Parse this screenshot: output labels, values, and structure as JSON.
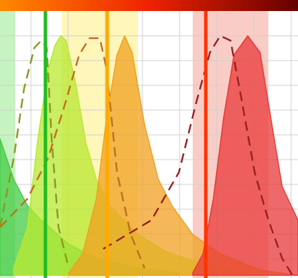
{
  "chart_data": {
    "type": "area",
    "xlim": [
      0,
      433
    ],
    "ylim": [
      0,
      100
    ],
    "grid": true,
    "bands": [
      {
        "x": [
          0,
          22
        ],
        "color": "#b8f0b0"
      },
      {
        "x": [
          90,
          200
        ],
        "color": "#fff4a8"
      },
      {
        "x": [
          280,
          390
        ],
        "color": "#f8c0b8"
      }
    ],
    "lasers": [
      {
        "x": 66,
        "color": "#22bb22"
      },
      {
        "x": 156,
        "color": "#ffaa00"
      },
      {
        "x": 299,
        "color": "#ff3300"
      }
    ],
    "series": [
      {
        "color": "#44cc44",
        "fill": true,
        "dashed": false,
        "x": [
          0,
          20,
          40,
          60,
          100,
          140,
          200,
          260
        ],
        "values": [
          57,
          40,
          29,
          23,
          13,
          7,
          3,
          1
        ]
      },
      {
        "color": "#b8e830",
        "fill": true,
        "dashed": false,
        "x": [
          20,
          40,
          55,
          70,
          80,
          88,
          96,
          110,
          125,
          140,
          160,
          200,
          240,
          300,
          360
        ],
        "values": [
          3,
          20,
          57,
          86,
          96,
          100,
          98,
          80,
          55,
          40,
          29,
          17,
          10,
          4,
          1
        ]
      },
      {
        "color": "#f0a020",
        "fill": true,
        "dashed": false,
        "x": [
          100,
          120,
          140,
          155,
          170,
          181,
          192,
          210,
          230,
          250,
          280,
          320,
          380,
          433
        ],
        "values": [
          1,
          9,
          32,
          66,
          92,
          100,
          93,
          63,
          40,
          29,
          17,
          9,
          2,
          0
        ]
      },
      {
        "color": "#e83838",
        "fill": true,
        "dashed": false,
        "x": [
          280,
          295,
          310,
          325,
          340,
          360,
          378,
          395,
          410,
          433
        ],
        "values": [
          1,
          9,
          32,
          66,
          92,
          100,
          93,
          63,
          37,
          23
        ]
      },
      {
        "color": "#8a9a20",
        "fill": false,
        "dashed": true,
        "x": [
          0,
          20,
          35,
          50,
          60,
          68,
          75,
          85,
          100
        ],
        "values": [
          20,
          49,
          78,
          95,
          98,
          95,
          57,
          20,
          3
        ]
      },
      {
        "color": "#c07020",
        "fill": false,
        "dashed": true,
        "x": [
          0,
          40,
          70,
          95,
          115,
          130,
          145,
          155,
          170,
          190,
          210
        ],
        "values": [
          20,
          32,
          49,
          72,
          92,
          99,
          99,
          86,
          43,
          17,
          3
        ]
      },
      {
        "color": "#992222",
        "fill": false,
        "dashed": true,
        "x": [
          150,
          220,
          260,
          285,
          305,
          320,
          335,
          350,
          370,
          390,
          410,
          425
        ],
        "values": [
          11,
          23,
          43,
          72,
          93,
          100,
          98,
          75,
          43,
          23,
          7,
          0
        ]
      }
    ]
  }
}
